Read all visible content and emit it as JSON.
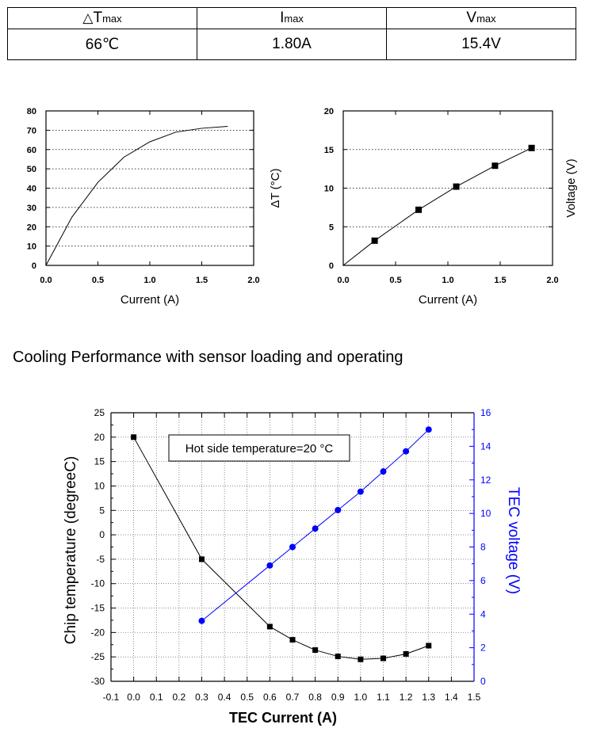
{
  "spec_table": {
    "headers": [
      {
        "symbol": "△",
        "main": "T",
        "sub": "max"
      },
      {
        "symbol": "",
        "main": "I",
        "sub": "max"
      },
      {
        "symbol": "",
        "main": "V",
        "sub": "max"
      }
    ],
    "values": [
      "66℃",
      "1.80A",
      "15.4V"
    ]
  },
  "section_title": "Cooling Performance with sensor loading and operating",
  "chart_data": [
    {
      "type": "line",
      "title": "",
      "xlabel": "Current (A)",
      "ylabel": "",
      "xlim": [
        0,
        2.0
      ],
      "ylim": [
        0,
        80
      ],
      "x_ticks": [
        "0.0",
        "0.5",
        "1.0",
        "1.5",
        "2.0"
      ],
      "y_ticks": [
        "0",
        "10",
        "20",
        "30",
        "40",
        "50",
        "60",
        "70",
        "80"
      ],
      "grid": "horizontal dotted",
      "series": [
        {
          "x": [
            0,
            0.25,
            0.5,
            0.75,
            1.0,
            1.25,
            1.5,
            1.75
          ],
          "y": [
            0,
            25,
            43,
            56,
            64,
            69,
            71,
            72
          ]
        }
      ]
    },
    {
      "type": "line",
      "title": "",
      "xlabel": "Current (A)",
      "ylabel": "ΔT (°C)",
      "ylabel_right": "Voltage (V)",
      "xlim": [
        0,
        2.0
      ],
      "ylim": [
        0,
        20
      ],
      "x_ticks": [
        "0.0",
        "0.5",
        "1.0",
        "1.5",
        "2.0"
      ],
      "y_ticks": [
        "0",
        "5",
        "10",
        "15",
        "20"
      ],
      "grid": "horizontal dotted",
      "series": [
        {
          "x": [
            0,
            0.3,
            0.72,
            1.08,
            1.45,
            1.8
          ],
          "y": [
            0,
            3.2,
            7.2,
            10.2,
            12.9,
            15.2
          ],
          "marker": "square"
        }
      ]
    },
    {
      "type": "line",
      "title": "",
      "xlabel": "TEC Current (A)",
      "ylabel": "Chip temperature (degreeC)",
      "ylabel_right": "TEC voltage (V)",
      "annotation": "Hot side temperature=20 °C",
      "xlim": [
        -0.1,
        1.5
      ],
      "ylim": [
        -30,
        25
      ],
      "ylim_right": [
        0,
        16
      ],
      "x_ticks": [
        "-0.1",
        "0.0",
        "0.1",
        "0.2",
        "0.3",
        "0.4",
        "0.5",
        "0.6",
        "0.7",
        "0.8",
        "0.9",
        "1.0",
        "1.1",
        "1.2",
        "1.3",
        "1.4",
        "1.5"
      ],
      "y_ticks": [
        "25",
        "20",
        "15",
        "10",
        "5",
        "0",
        "-5",
        "-10",
        "-15",
        "-20",
        "-25",
        "-30"
      ],
      "y2_ticks": [
        "16",
        "14",
        "12",
        "10",
        "8",
        "6",
        "4",
        "2",
        "0"
      ],
      "grid": "both dotted",
      "colors": {
        "temperature": "#000000",
        "voltage": "#0000ff"
      },
      "series": [
        {
          "name": "Chip temperature",
          "axis": "left",
          "marker": "square",
          "x": [
            0.0,
            0.3,
            0.6,
            0.7,
            0.8,
            0.9,
            1.0,
            1.1,
            1.2,
            1.3
          ],
          "y": [
            20,
            -5,
            -18.8,
            -21.5,
            -23.6,
            -24.9,
            -25.5,
            -25.3,
            -24.4,
            -22.7
          ]
        },
        {
          "name": "TEC voltage",
          "axis": "right",
          "marker": "circle",
          "x": [
            0.3,
            0.6,
            0.7,
            0.8,
            0.9,
            1.0,
            1.1,
            1.2,
            1.3
          ],
          "y": [
            3.6,
            6.9,
            8.0,
            9.1,
            10.2,
            11.3,
            12.5,
            13.7,
            15.0
          ]
        }
      ]
    }
  ]
}
